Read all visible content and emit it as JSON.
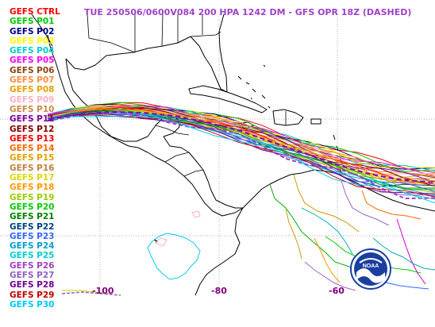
{
  "title": "TUE 250506/0600V084  200 HPA 1242 DM - GFS OPR 18Z (DASHED)",
  "legend": [
    {
      "label": "GEFS CTRL",
      "color": "#ff0000"
    },
    {
      "label": "GEFS P01",
      "color": "#00cc00"
    },
    {
      "label": "GEFS P02",
      "color": "#000080"
    },
    {
      "label": "GEFS P03",
      "color": "#ffff00"
    },
    {
      "label": "GEFS P04",
      "color": "#00cccc"
    },
    {
      "label": "GEFS P05",
      "color": "#ff00ff"
    },
    {
      "label": "GEFS P06",
      "color": "#8b4513"
    },
    {
      "label": "GEFS P07",
      "color": "#ff8c40"
    },
    {
      "label": "GEFS P08",
      "color": "#e8a000"
    },
    {
      "label": "GEFS P09",
      "color": "#ffb0c0"
    },
    {
      "label": "GEFS P10",
      "color": "#cc8844"
    },
    {
      "label": "GEFS P11",
      "color": "#8000a0"
    },
    {
      "label": "GEFS P12",
      "color": "#800000"
    },
    {
      "label": "GEFS P13",
      "color": "#ff0000"
    },
    {
      "label": "GEFS P14",
      "color": "#ff6600"
    },
    {
      "label": "GEFS P15",
      "color": "#e0a000"
    },
    {
      "label": "GEFS P16",
      "color": "#c08040"
    },
    {
      "label": "GEFS P17",
      "color": "#d8d800"
    },
    {
      "label": "GEFS P18",
      "color": "#ff9900"
    },
    {
      "label": "GEFS P19",
      "color": "#99cc00"
    },
    {
      "label": "GEFS P20",
      "color": "#00cc00"
    },
    {
      "label": "GEFS P21",
      "color": "#008000"
    },
    {
      "label": "GEFS P22",
      "color": "#004080"
    },
    {
      "label": "GEFS P23",
      "color": "#3366ff"
    },
    {
      "label": "GEFS P24",
      "color": "#00a0d0"
    },
    {
      "label": "GEFS P25",
      "color": "#00d0d0"
    },
    {
      "label": "GEFS P26",
      "color": "#a040c0"
    },
    {
      "label": "GEFS P27",
      "color": "#9060c0"
    },
    {
      "label": "GEFS P28",
      "color": "#700090"
    },
    {
      "label": "GEFS P29",
      "color": "#c00000"
    },
    {
      "label": "GEFS P30",
      "color": "#00c8ff"
    }
  ],
  "axis_labels": {
    "lon_100": "-100",
    "lon_80": "-80",
    "lon_60": "-60"
  },
  "logo_text": "NOAA",
  "map": {
    "region": "Gulf of Mexico, Central America, Caribbean, northern South America",
    "contour": "200 HPA 1242 DM",
    "projection": "cylindrical",
    "gridlines": "dotted, light grey"
  }
}
